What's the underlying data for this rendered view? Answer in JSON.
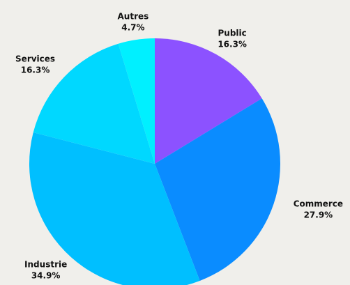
{
  "chart_data": {
    "type": "pie",
    "categories": [
      "Public",
      "Commerce",
      "Industrie",
      "Services",
      "Autres"
    ],
    "values": [
      16.3,
      27.9,
      34.9,
      16.3,
      4.7
    ],
    "value_labels": [
      "16.3%",
      "27.9%",
      "34.9%",
      "16.3%",
      "4.7%"
    ],
    "colors": [
      "#8c52ff",
      "#0a8cff",
      "#00bfff",
      "#00d8ff",
      "#00f0ff"
    ]
  }
}
